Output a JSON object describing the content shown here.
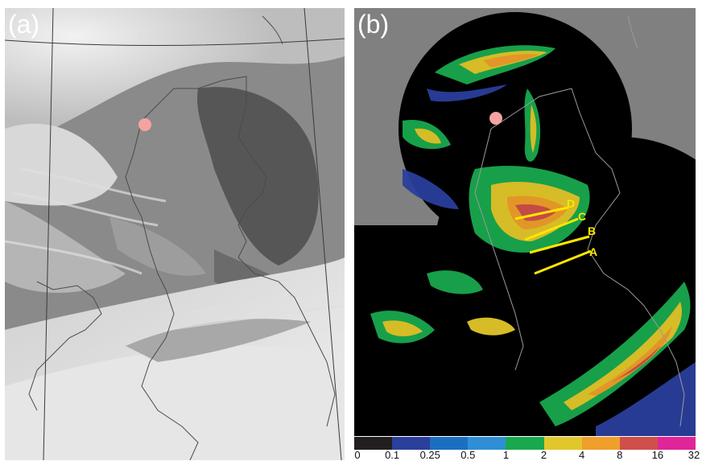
{
  "panels": {
    "a": {
      "label": "(a)"
    },
    "b": {
      "label": "(b)"
    }
  },
  "transects": [
    {
      "label": "D"
    },
    {
      "label": "C"
    },
    {
      "label": "B"
    },
    {
      "label": "A"
    }
  ],
  "colorbar": {
    "ticks": [
      "0",
      "0.1",
      "0.25",
      "0.5",
      "1",
      "2",
      "4",
      "8",
      "16",
      "32"
    ],
    "colors": [
      "#231f20",
      "#2b3f9c",
      "#1c6fc0",
      "#2e8fd6",
      "#1aa84f",
      "#e2c72a",
      "#ef9f2a",
      "#cf4f4a",
      "#e0259a"
    ]
  },
  "colors": {
    "marker": "#f4a3a0",
    "transect": "#ffe600",
    "coast": "#9a9a9a",
    "radar_background": "#000000",
    "no_coverage": "#808080"
  }
}
